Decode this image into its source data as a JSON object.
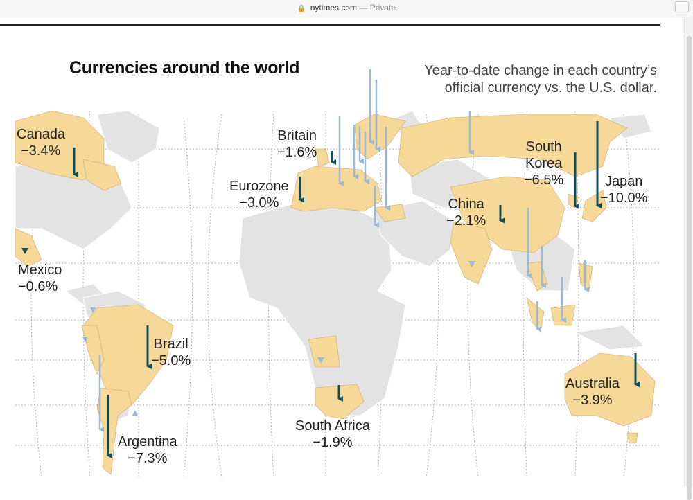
{
  "browser": {
    "domain": "nytimes.com",
    "separator": "—",
    "mode": "Private",
    "lock_icon": "lock-icon"
  },
  "graphic": {
    "title": "Currencies around the world",
    "subtitle_line1": "Year-to-date change in each country’s",
    "subtitle_line2": "official currency vs. the U.S. dollar."
  },
  "colors": {
    "land": "#e3e3e3",
    "highlight": "#f6d899",
    "arrow_dark": "#0d4f5c",
    "arrow_light": "#9cbad6",
    "grid": "#9a9a9a"
  },
  "chart_data": {
    "type": "bar",
    "categories": [
      "Canada",
      "Britain",
      "Eurozone",
      "Mexico",
      "Brazil",
      "Argentina",
      "South Africa",
      "China",
      "South Korea",
      "Japan",
      "Australia"
    ],
    "values": [
      -3.4,
      -1.6,
      -3.0,
      -0.6,
      -5.0,
      -7.3,
      -1.9,
      -2.1,
      -6.5,
      -10.0,
      -3.9
    ]
  },
  "labels": {
    "canada": {
      "name": "Canada",
      "pct": "−3.4%"
    },
    "britain": {
      "name": "Britain",
      "pct": "−1.6%"
    },
    "eurozone": {
      "name": "Eurozone",
      "pct": "−3.0%"
    },
    "mexico": {
      "name": "Mexico",
      "pct": "−0.6%"
    },
    "brazil": {
      "name": "Brazil",
      "pct": "−5.0%"
    },
    "argentina": {
      "name": "Argentina",
      "pct": "−7.3%"
    },
    "south_africa": {
      "name": "South Africa",
      "pct": "−1.9%"
    },
    "china": {
      "name": "China",
      "pct": "−2.1%"
    },
    "south_korea": {
      "name1": "South",
      "name2": "Korea",
      "pct": "−6.5%"
    },
    "japan": {
      "name": "Japan",
      "pct": "−10.0%"
    },
    "australia": {
      "name": "Australia",
      "pct": "−3.9%"
    }
  }
}
